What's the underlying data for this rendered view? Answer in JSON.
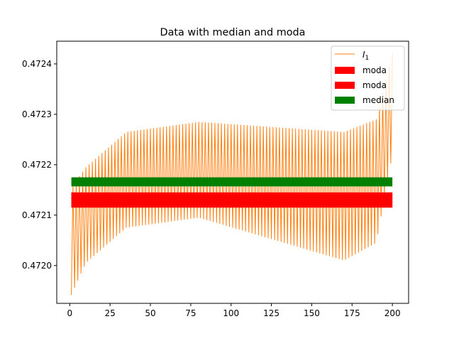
{
  "chart_data": {
    "type": "line",
    "title": "Data with median and moda",
    "xlabel": "",
    "ylabel": "",
    "xlim": [
      -8.05,
      210.05
    ],
    "ylim": [
      0.471925,
      0.472445
    ],
    "xticks": [
      0,
      25,
      50,
      75,
      100,
      125,
      150,
      175,
      200
    ],
    "xtick_labels": [
      "0",
      "25",
      "50",
      "75",
      "100",
      "125",
      "150",
      "175",
      "200"
    ],
    "yticks": [
      0.472,
      0.4721,
      0.4722,
      0.4723,
      0.4724
    ],
    "ytick_labels": [
      "0.4720",
      "0.4721",
      "0.4722",
      "0.4723",
      "0.4724"
    ],
    "grid": false,
    "legend_position": "top-right",
    "series": [
      {
        "name": "I_1",
        "label_main": "I",
        "label_sub": "1",
        "kind": "line",
        "color": "#ff7f0e",
        "x_start": 1,
        "x_end": 200,
        "segments": [
          {
            "x_from": 1,
            "x_to": 10,
            "low_from": 0.471942,
            "low_to": 0.472005,
            "high_from": 0.472155,
            "high_to": 0.472195
          },
          {
            "x_from": 10,
            "x_to": 35,
            "low_from": 0.472005,
            "low_to": 0.472075,
            "high_from": 0.472195,
            "high_to": 0.472265
          },
          {
            "x_from": 35,
            "x_to": 80,
            "low_from": 0.472075,
            "low_to": 0.472095,
            "high_from": 0.472265,
            "high_to": 0.472285
          },
          {
            "x_from": 80,
            "x_to": 170,
            "low_from": 0.472095,
            "low_to": 0.47201,
            "high_from": 0.472285,
            "high_to": 0.472265
          },
          {
            "x_from": 170,
            "x_to": 190,
            "low_from": 0.47201,
            "low_to": 0.472045,
            "high_from": 0.472265,
            "high_to": 0.47229
          },
          {
            "x_from": 190,
            "x_to": 200,
            "low_from": 0.472045,
            "low_to": 0.47222,
            "high_from": 0.47229,
            "high_to": 0.47242
          }
        ]
      },
      {
        "name": "moda",
        "kind": "band",
        "color": "#ff0000",
        "x": [
          1,
          200
        ],
        "y_low": 0.472115,
        "y_high": 0.472145
      },
      {
        "name": "moda",
        "kind": "band",
        "color": "#ff0000",
        "x": [
          1,
          200
        ],
        "y_low": 0.472115,
        "y_high": 0.472145
      },
      {
        "name": "median",
        "kind": "band",
        "color": "#008000",
        "x": [
          1,
          200
        ],
        "y_low": 0.472157,
        "y_high": 0.472175
      }
    ]
  }
}
